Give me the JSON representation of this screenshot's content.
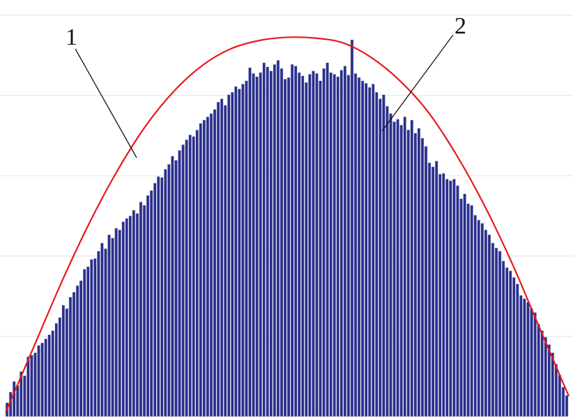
{
  "chart_data": {
    "type": "bar",
    "title": "",
    "xlabel": "",
    "ylabel": "",
    "grid": true,
    "ylim": [
      0,
      5
    ],
    "x": [
      1,
      2,
      3,
      4,
      5,
      6,
      7,
      8,
      9,
      10,
      11,
      12,
      13,
      14,
      15,
      16,
      17,
      18,
      19,
      20,
      21,
      22,
      23,
      24,
      25,
      26,
      27,
      28,
      29,
      30,
      31,
      32,
      33,
      34,
      35,
      36,
      37,
      38,
      39,
      40,
      41,
      42,
      43,
      44,
      45,
      46,
      47,
      48,
      49,
      50,
      51,
      52,
      53,
      54,
      55,
      56,
      57,
      58,
      59,
      60,
      61,
      62,
      63,
      64,
      65,
      66,
      67,
      68,
      69,
      70,
      71,
      72,
      73,
      74,
      75,
      76,
      77,
      78,
      79,
      80,
      81,
      82,
      83,
      84,
      85,
      86,
      87,
      88,
      89,
      90,
      91,
      92,
      93,
      94,
      95,
      96,
      97,
      98,
      99,
      100,
      101,
      102,
      103,
      104,
      105,
      106,
      107,
      108,
      109,
      110,
      111,
      112,
      113,
      114,
      115,
      116,
      117,
      118,
      119,
      120,
      121,
      122,
      123,
      124,
      125,
      126,
      127,
      128,
      129,
      130,
      131,
      132,
      133,
      134,
      135,
      136,
      137,
      138,
      139,
      140,
      141,
      142,
      143,
      144,
      145,
      146,
      147,
      148,
      149,
      150,
      151,
      152,
      153,
      154,
      155,
      156,
      157,
      158,
      159,
      160
    ],
    "series": [
      {
        "values": [
          0.17,
          0.3,
          0.43,
          0.38,
          0.55,
          0.5,
          0.73,
          0.75,
          0.78,
          0.87,
          0.9,
          0.95,
          1.0,
          1.05,
          1.14,
          1.21,
          1.36,
          1.32,
          1.46,
          1.52,
          1.6,
          1.66,
          1.8,
          1.83,
          1.92,
          1.93,
          2.02,
          2.12,
          2.05,
          2.22,
          2.18,
          2.3,
          2.28,
          2.38,
          2.42,
          2.45,
          2.52,
          2.48,
          2.62,
          2.58,
          2.7,
          2.76,
          2.85,
          2.93,
          2.92,
          3.02,
          3.08,
          3.18,
          3.13,
          3.25,
          3.32,
          3.38,
          3.44,
          3.42,
          3.5,
          3.58,
          3.62,
          3.66,
          3.7,
          3.75,
          3.84,
          3.88,
          3.8,
          3.93,
          3.96,
          4.03,
          4.0,
          4.06,
          4.1,
          4.26,
          4.19,
          4.15,
          4.2,
          4.32,
          4.27,
          4.22,
          4.3,
          4.35,
          4.25,
          4.12,
          4.14,
          4.3,
          4.28,
          4.2,
          4.16,
          4.08,
          4.18,
          4.22,
          4.19,
          4.1,
          4.25,
          4.32,
          4.2,
          4.18,
          4.15,
          4.23,
          4.28,
          4.17,
          4.6,
          4.19,
          4.14,
          4.1,
          4.07,
          4.02,
          4.06,
          3.96,
          3.88,
          3.93,
          3.79,
          3.7,
          3.6,
          3.63,
          3.56,
          3.66,
          3.5,
          3.62,
          3.46,
          3.52,
          3.4,
          3.3,
          3.1,
          3.05,
          3.12,
          2.96,
          2.97,
          2.9,
          2.88,
          2.9,
          2.82,
          2.66,
          2.72,
          2.6,
          2.58,
          2.46,
          2.4,
          2.36,
          2.28,
          2.22,
          2.12,
          2.06,
          2.02,
          1.9,
          1.82,
          1.78,
          1.7,
          1.62,
          1.48,
          1.44,
          1.4,
          1.32,
          1.27,
          1.13,
          1.05,
          0.97,
          0.88,
          0.78,
          0.64,
          0.51,
          0.36,
          0.26
        ]
      }
    ],
    "fit_curve": {
      "color": "#e8181d",
      "description_shown": false,
      "x": [
        0,
        8,
        16,
        24,
        32,
        40,
        48,
        56,
        64,
        72,
        80,
        88,
        96,
        104,
        112,
        120,
        128,
        136,
        144,
        152,
        160
      ],
      "y": [
        0.05,
        0.85,
        1.65,
        2.38,
        3.02,
        3.56,
        3.98,
        4.29,
        4.49,
        4.59,
        4.63,
        4.62,
        4.56,
        4.38,
        4.1,
        3.72,
        3.2,
        2.58,
        1.86,
        1.05,
        0.25
      ]
    },
    "bar_color": "#2a2f8c",
    "bar_edge_color": "#d8dae8",
    "annotations": [
      {
        "text": "1",
        "target": "fit-curve"
      },
      {
        "text": "2",
        "target": "histogram-bars"
      }
    ]
  }
}
